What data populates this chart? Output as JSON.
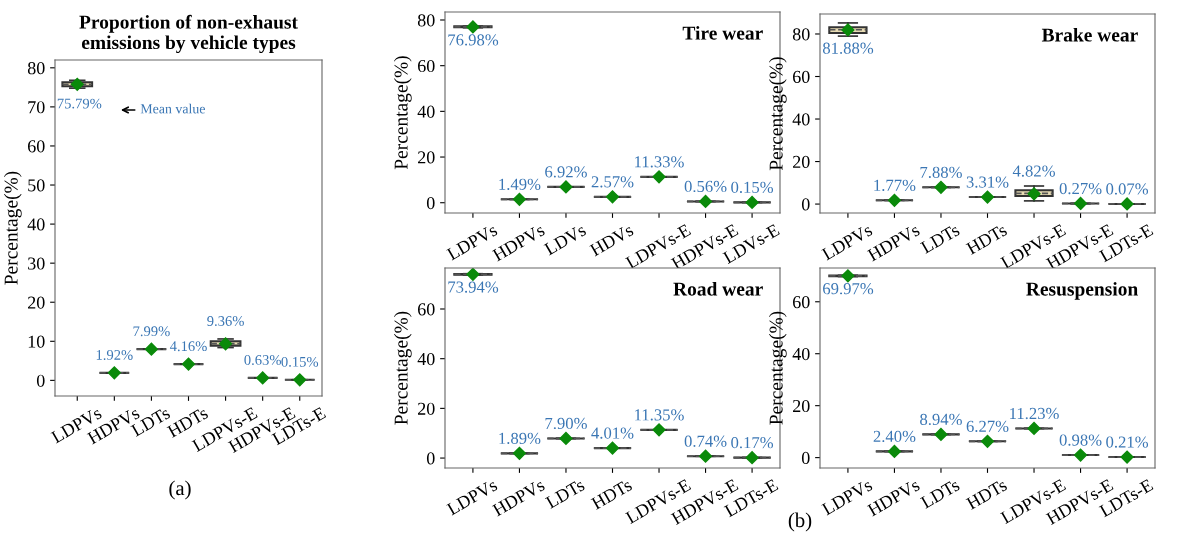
{
  "chart_data": [
    {
      "type": "box",
      "title": "Proportion of non-exhaust\nemissions by vehicle types",
      "ylabel": "Percentage(%)",
      "categories": [
        "LDPVs",
        "HDPVs",
        "LDTs",
        "HDTs",
        "LDPVs-E",
        "HDPVs-E",
        "LDTs-E"
      ],
      "ylim": [
        -4,
        82
      ],
      "yticks": [
        0,
        10,
        20,
        30,
        40,
        50,
        60,
        70,
        80
      ],
      "marker": "diamond",
      "series": [
        {
          "colors": [
            "#e8dcb5",
            "#333333",
            "#333333",
            "#333333",
            "#e8dcb5",
            "#333333",
            "#333333"
          ],
          "boxes": [
            {
              "low": 74.8,
              "q1": 75.3,
              "median": 75.8,
              "q3": 76.3,
              "high": 76.8,
              "mean": 75.79
            },
            {
              "low": 1.92,
              "q1": 1.92,
              "median": 1.92,
              "q3": 1.92,
              "high": 1.92,
              "mean": 1.92
            },
            {
              "low": 7.99,
              "q1": 7.99,
              "median": 7.99,
              "q3": 7.99,
              "high": 7.99,
              "mean": 7.99
            },
            {
              "low": 4.16,
              "q1": 4.16,
              "median": 4.16,
              "q3": 4.16,
              "high": 4.16,
              "mean": 4.16
            },
            {
              "low": 8.4,
              "q1": 8.9,
              "median": 9.4,
              "q3": 10.0,
              "high": 10.6,
              "mean": 9.36
            },
            {
              "low": 0.63,
              "q1": 0.63,
              "median": 0.63,
              "q3": 0.63,
              "high": 0.63,
              "mean": 0.63
            },
            {
              "low": 0.15,
              "q1": 0.15,
              "median": 0.15,
              "q3": 0.15,
              "high": 0.15,
              "mean": 0.15
            }
          ],
          "value_labels": [
            "75.79%",
            "1.92%",
            "7.99%",
            "4.16%",
            "9.36%",
            "0.63%",
            "0.15%"
          ]
        }
      ],
      "annotations": [
        "(a)",
        "Mean value"
      ]
    },
    {
      "type": "box",
      "title": "Tire wear",
      "ylabel": "Percentage(%)",
      "categories": [
        "LDPVs",
        "HDPVs",
        "LDVs",
        "HDVs",
        "LDPVs-E",
        "HDPVs-E",
        "LDVs-E"
      ],
      "ylim": [
        -4.5,
        83.5
      ],
      "yticks": [
        0,
        20,
        40,
        60,
        80
      ],
      "marker": "diamond",
      "series": [
        {
          "colors": [
            "#e8dcb5",
            "#333333",
            "#333333",
            "#333333",
            "#333333",
            "#333333",
            "#333333"
          ],
          "boxes": [
            {
              "low": 76.6,
              "q1": 76.8,
              "median": 76.98,
              "q3": 77.2,
              "high": 77.3,
              "mean": 76.98
            },
            {
              "low": 1.49,
              "q1": 1.49,
              "median": 1.49,
              "q3": 1.49,
              "high": 1.49,
              "mean": 1.49
            },
            {
              "low": 6.92,
              "q1": 6.92,
              "median": 6.92,
              "q3": 6.92,
              "high": 6.92,
              "mean": 6.92
            },
            {
              "low": 2.57,
              "q1": 2.57,
              "median": 2.57,
              "q3": 2.57,
              "high": 2.57,
              "mean": 2.57
            },
            {
              "low": 11.33,
              "q1": 11.33,
              "median": 11.33,
              "q3": 11.33,
              "high": 11.33,
              "mean": 11.33
            },
            {
              "low": 0.56,
              "q1": 0.56,
              "median": 0.56,
              "q3": 0.56,
              "high": 0.56,
              "mean": 0.56
            },
            {
              "low": 0.15,
              "q1": 0.15,
              "median": 0.15,
              "q3": 0.15,
              "high": 0.15,
              "mean": 0.15
            }
          ],
          "value_labels": [
            "76.98%",
            "1.49%",
            "6.92%",
            "2.57%",
            "11.33%",
            "0.56%",
            "0.15%"
          ]
        }
      ]
    },
    {
      "type": "box",
      "title": "Brake wear",
      "ylabel": "Percentage(%)",
      "categories": [
        "LDPVs",
        "HDPVs",
        "LDTs",
        "HDTs",
        "LDPVs-E",
        "HDPVs-E",
        "LDTs-E"
      ],
      "ylim": [
        -4.2,
        89.4
      ],
      "yticks": [
        0,
        20,
        40,
        60,
        80
      ],
      "marker": "diamond",
      "series": [
        {
          "colors": [
            "#e8dcb5",
            "#333333",
            "#333333",
            "#333333",
            "#e8dcb5",
            "#333333",
            "#333333"
          ],
          "boxes": [
            {
              "low": 79.0,
              "q1": 80.5,
              "median": 82.0,
              "q3": 83.2,
              "high": 85.2,
              "mean": 81.88
            },
            {
              "low": 1.77,
              "q1": 1.77,
              "median": 1.77,
              "q3": 1.77,
              "high": 1.77,
              "mean": 1.77
            },
            {
              "low": 7.88,
              "q1": 7.88,
              "median": 7.88,
              "q3": 7.88,
              "high": 7.88,
              "mean": 7.88
            },
            {
              "low": 3.31,
              "q1": 3.31,
              "median": 3.31,
              "q3": 3.31,
              "high": 3.31,
              "mean": 3.31
            },
            {
              "low": 1.5,
              "q1": 3.8,
              "median": 5.0,
              "q3": 6.5,
              "high": 8.5,
              "mean": 4.82
            },
            {
              "low": 0.27,
              "q1": 0.27,
              "median": 0.27,
              "q3": 0.27,
              "high": 0.27,
              "mean": 0.27
            },
            {
              "low": 0.07,
              "q1": 0.07,
              "median": 0.07,
              "q3": 0.07,
              "high": 0.07,
              "mean": 0.07
            }
          ],
          "value_labels": [
            "81.88%",
            "1.77%",
            "7.88%",
            "3.31%",
            "4.82%",
            "0.27%",
            "0.07%"
          ]
        }
      ]
    },
    {
      "type": "box",
      "title": "Road wear",
      "ylabel": "Percentage(%)",
      "categories": [
        "LDPVs",
        "HDPVs",
        "LDTs",
        "HDTs",
        "LDPVs-E",
        "HDPVs-E",
        "LDTs-E"
      ],
      "ylim": [
        -4,
        76.5
      ],
      "yticks": [
        0,
        20,
        40,
        60
      ],
      "marker": "diamond",
      "series": [
        {
          "colors": [
            "#e8dcb5",
            "#333333",
            "#333333",
            "#333333",
            "#333333",
            "#333333",
            "#333333"
          ],
          "boxes": [
            {
              "low": 73.7,
              "q1": 73.8,
              "median": 73.94,
              "q3": 74.1,
              "high": 74.2,
              "mean": 73.94
            },
            {
              "low": 1.89,
              "q1": 1.89,
              "median": 1.89,
              "q3": 1.89,
              "high": 1.89,
              "mean": 1.89
            },
            {
              "low": 7.9,
              "q1": 7.9,
              "median": 7.9,
              "q3": 7.9,
              "high": 7.9,
              "mean": 7.9
            },
            {
              "low": 4.01,
              "q1": 4.01,
              "median": 4.01,
              "q3": 4.01,
              "high": 4.01,
              "mean": 4.01
            },
            {
              "low": 11.35,
              "q1": 11.35,
              "median": 11.35,
              "q3": 11.35,
              "high": 11.35,
              "mean": 11.35
            },
            {
              "low": 0.74,
              "q1": 0.74,
              "median": 0.74,
              "q3": 0.74,
              "high": 0.74,
              "mean": 0.74
            },
            {
              "low": 0.17,
              "q1": 0.17,
              "median": 0.17,
              "q3": 0.17,
              "high": 0.17,
              "mean": 0.17
            }
          ],
          "value_labels": [
            "73.94%",
            "1.89%",
            "7.90%",
            "4.01%",
            "11.35%",
            "0.74%",
            "0.17%"
          ]
        }
      ]
    },
    {
      "type": "box",
      "title": "Resuspension",
      "ylabel": "Percentage(%)",
      "categories": [
        "LDPVs",
        "HDPVs",
        "LDTs",
        "HDTs",
        "LDPVs-E",
        "HDPVs-E",
        "LDTs-E"
      ],
      "ylim": [
        -4,
        73
      ],
      "yticks": [
        0,
        20,
        40,
        60
      ],
      "marker": "diamond",
      "series": [
        {
          "colors": [
            "#e8dcb5",
            "#333333",
            "#333333",
            "#333333",
            "#333333",
            "#333333",
            "#333333"
          ],
          "boxes": [
            {
              "low": 69.7,
              "q1": 69.85,
              "median": 69.97,
              "q3": 70.1,
              "high": 70.2,
              "mean": 69.97
            },
            {
              "low": 2.4,
              "q1": 2.4,
              "median": 2.4,
              "q3": 2.4,
              "high": 2.4,
              "mean": 2.4
            },
            {
              "low": 8.94,
              "q1": 8.94,
              "median": 8.94,
              "q3": 8.94,
              "high": 8.94,
              "mean": 8.94
            },
            {
              "low": 6.27,
              "q1": 6.27,
              "median": 6.27,
              "q3": 6.27,
              "high": 6.27,
              "mean": 6.27
            },
            {
              "low": 11.23,
              "q1": 11.23,
              "median": 11.23,
              "q3": 11.23,
              "high": 11.23,
              "mean": 11.23
            },
            {
              "low": 0.98,
              "q1": 0.98,
              "median": 0.98,
              "q3": 0.98,
              "high": 0.98,
              "mean": 0.98
            },
            {
              "low": 0.21,
              "q1": 0.21,
              "median": 0.21,
              "q3": 0.21,
              "high": 0.21,
              "mean": 0.21
            }
          ],
          "value_labels": [
            "69.97%",
            "2.40%",
            "8.94%",
            "6.27%",
            "11.23%",
            "0.98%",
            "0.21%"
          ]
        }
      ],
      "annotations": [
        "(b)"
      ]
    }
  ]
}
